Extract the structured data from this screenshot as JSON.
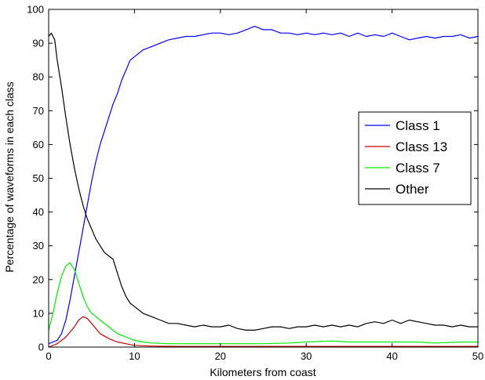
{
  "chart_data": {
    "type": "line",
    "title": "",
    "xlabel": "Kilometers from coast",
    "ylabel": "Percentage of waveforms in each class",
    "xlim": [
      0,
      50
    ],
    "ylim": [
      0,
      100
    ],
    "xticks": [
      0,
      10,
      20,
      30,
      40,
      50
    ],
    "yticks": [
      0,
      10,
      20,
      30,
      40,
      50,
      60,
      70,
      80,
      90,
      100
    ],
    "grid": false,
    "legend_position": "center-right",
    "series": [
      {
        "name": "Class 1",
        "color": "#0000ff",
        "x": [
          0,
          0.5,
          1,
          1.5,
          2,
          2.5,
          3,
          3.5,
          4,
          4.5,
          5,
          5.5,
          6,
          6.5,
          7,
          7.5,
          8,
          8.5,
          9,
          9.5,
          10,
          11,
          12,
          13,
          14,
          15,
          16,
          17,
          18,
          19,
          20,
          21,
          22,
          23,
          24,
          25,
          26,
          27,
          28,
          29,
          30,
          31,
          32,
          33,
          34,
          35,
          36,
          37,
          38,
          39,
          40,
          41,
          42,
          43,
          44,
          45,
          46,
          47,
          48,
          49,
          50
        ],
        "y": [
          1,
          1.5,
          2,
          4,
          8,
          14,
          21,
          28,
          35,
          42,
          49,
          55,
          60,
          64,
          68,
          72,
          75,
          79,
          82,
          85,
          86,
          88,
          89,
          90,
          91,
          91.5,
          92,
          92,
          92.5,
          93,
          93,
          92.5,
          93,
          94,
          95,
          94,
          94,
          93,
          93,
          92.5,
          93,
          92.5,
          93,
          92.5,
          93,
          92,
          93,
          92,
          92.5,
          92,
          93,
          92,
          91,
          91.5,
          92,
          91.5,
          92,
          92,
          92.5,
          91.5,
          92
        ]
      },
      {
        "name": "Class 13",
        "color": "#cc0000",
        "x": [
          0,
          1,
          2,
          3,
          3.5,
          4,
          4.5,
          5,
          6,
          7,
          8,
          9,
          10,
          12,
          15,
          20,
          25,
          30,
          35,
          40,
          45,
          50
        ],
        "y": [
          0,
          1,
          3,
          6,
          8,
          9,
          8.5,
          7,
          4,
          2.5,
          1.5,
          1,
          0.5,
          0.3,
          0.2,
          0.2,
          0.2,
          0.2,
          0.2,
          0.2,
          0.2,
          0.2
        ]
      },
      {
        "name": "Class 7",
        "color": "#00ee00",
        "x": [
          0,
          0.5,
          1,
          1.5,
          2,
          2.5,
          3,
          3.5,
          4,
          4.5,
          5,
          5.5,
          6,
          7,
          8,
          9,
          10,
          11,
          12,
          14,
          16,
          18,
          20,
          22,
          25,
          28,
          30,
          33,
          35,
          38,
          40,
          43,
          45,
          48,
          50
        ],
        "y": [
          5,
          10,
          16,
          21,
          24,
          25,
          23,
          19,
          15,
          12,
          10,
          9,
          8,
          6,
          4,
          3,
          2,
          1.5,
          1.2,
          1,
          1,
          1,
          1,
          1,
          1,
          1.2,
          1.5,
          1.8,
          1.5,
          1.5,
          1.5,
          1.5,
          1.2,
          1.5,
          1.5
        ]
      },
      {
        "name": "Other",
        "color": "#000000",
        "x": [
          0,
          0.3,
          0.7,
          1,
          1.5,
          2,
          2.5,
          3,
          3.5,
          4,
          4.5,
          5,
          5.5,
          6,
          6.5,
          7,
          7.5,
          8,
          8.5,
          9,
          9.5,
          10,
          11,
          12,
          13,
          14,
          15,
          16,
          17,
          18,
          19,
          20,
          21,
          22,
          23,
          24,
          25,
          26,
          27,
          28,
          29,
          30,
          31,
          32,
          33,
          34,
          35,
          36,
          37,
          38,
          39,
          40,
          41,
          42,
          43,
          44,
          45,
          46,
          47,
          48,
          49,
          50
        ],
        "y": [
          92,
          93,
          91,
          85,
          77,
          68,
          60,
          53,
          47,
          42,
          38,
          35,
          32,
          30,
          28,
          27,
          26,
          22,
          18,
          15,
          13,
          12,
          10,
          9,
          8,
          7,
          7,
          6.5,
          6,
          6.5,
          6,
          6,
          6.5,
          5.5,
          5,
          5,
          5.5,
          6,
          6,
          5.5,
          6,
          6,
          6.5,
          6,
          6.5,
          6,
          6.5,
          6,
          7,
          7.5,
          7,
          8,
          7,
          8,
          7.5,
          7,
          6.5,
          6.5,
          6,
          6.5,
          6,
          6
        ]
      }
    ]
  }
}
